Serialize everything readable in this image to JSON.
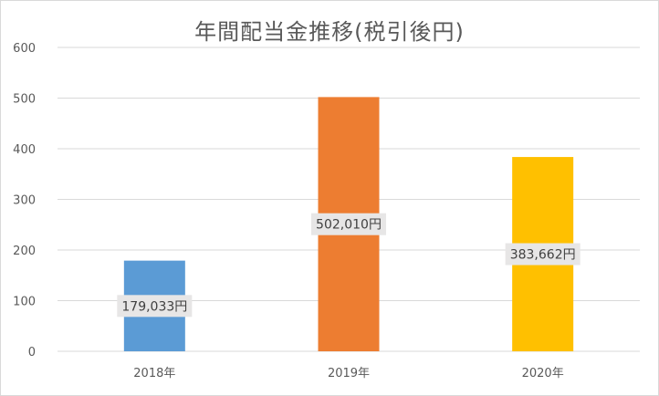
{
  "chart_data": {
    "type": "bar",
    "title": "年間配当金推移(税引後円)",
    "categories": [
      "2018年",
      "2019年",
      "2020年"
    ],
    "values": [
      179.033,
      502.01,
      383.662
    ],
    "data_labels": [
      "179,033円",
      "502,010円",
      "383,662円"
    ],
    "colors": [
      "#5b9bd5",
      "#ed7d31",
      "#ffc000"
    ],
    "ylim": [
      0,
      600
    ],
    "yticks": [
      "0",
      "100",
      "200",
      "300",
      "400",
      "500",
      "600"
    ],
    "ytick_values": [
      0,
      100,
      200,
      300,
      400,
      500,
      600
    ],
    "grid": true,
    "xlabel": "",
    "ylabel": ""
  }
}
